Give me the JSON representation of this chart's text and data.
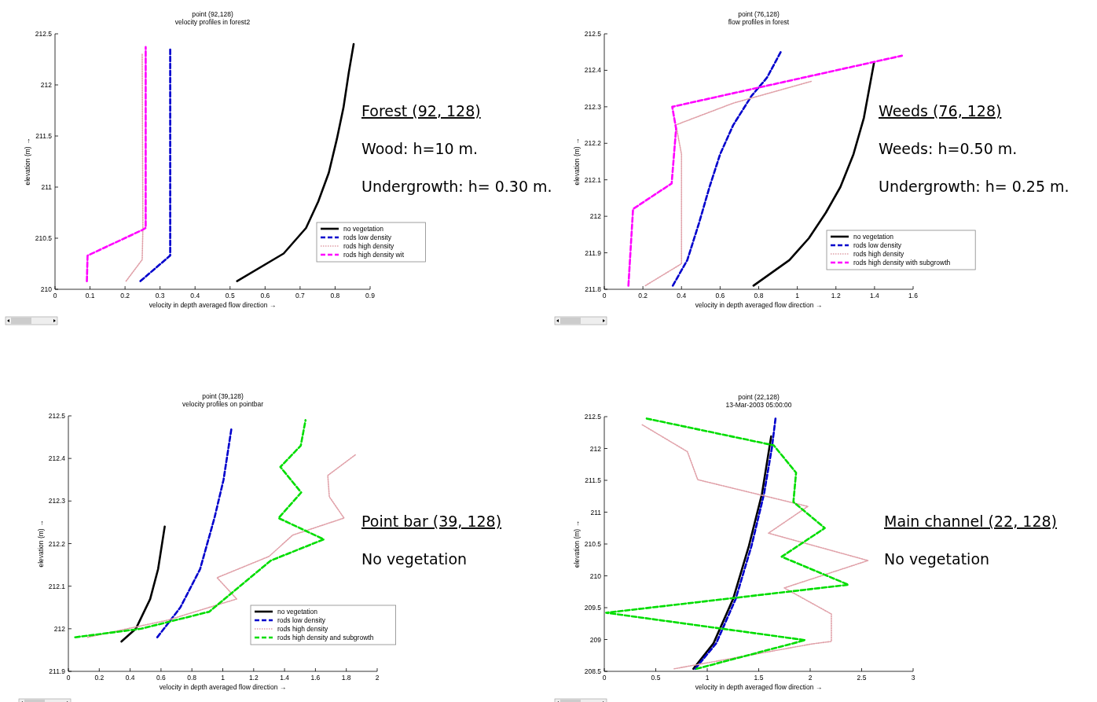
{
  "chart_data": [
    {
      "type": "line",
      "title": "point (92,128)",
      "subtitle": "velocity profiles in forest2",
      "xlabel": "velocity in depth averaged flow direction →",
      "ylabel": "elevation (m) →",
      "xlim": [
        0,
        0.9
      ],
      "ylim": [
        210,
        212.5
      ],
      "xticks": [
        0,
        0.1,
        0.2,
        0.3,
        0.4,
        0.5,
        0.6,
        0.7,
        0.8,
        0.9
      ],
      "yticks": [
        210,
        210.5,
        211,
        211.5,
        212,
        212.5
      ],
      "legend": "bottom right",
      "annotations": [
        "Forest (92, 128)",
        "Wood: h=10 m.",
        "Undergrowth: h= 0.30 m."
      ],
      "series": [
        {
          "name": "no vegetation",
          "color": "#000000",
          "line_style": "solid",
          "x": [
            0.52,
            0.653,
            0.717,
            0.752,
            0.782,
            0.805,
            0.824,
            0.839,
            0.853
          ],
          "values": [
            210.08,
            210.35,
            210.6,
            210.86,
            211.14,
            211.47,
            211.78,
            212.12,
            212.4
          ]
        },
        {
          "name": "rods low density",
          "color": "#0000cc",
          "line_style": "dashed",
          "x": [
            0.244,
            0.329,
            0.329
          ],
          "values": [
            210.08,
            210.33,
            212.35
          ]
        },
        {
          "name": "rods high density",
          "color": "#e0a0a8",
          "line_style": "dotted",
          "x": [
            0.203,
            0.249,
            0.251,
            0.249
          ],
          "values": [
            210.08,
            210.29,
            210.6,
            212.3
          ]
        },
        {
          "name": "rods high density wit",
          "color": "#ff00ff",
          "line_style": "dashed",
          "x": [
            0.091,
            0.093,
            0.249,
            0.259,
            0.259
          ],
          "values": [
            210.08,
            210.33,
            210.58,
            210.6,
            212.37
          ]
        }
      ]
    },
    {
      "type": "line",
      "title": "point (76,128)",
      "subtitle": "flow profiles in forest",
      "xlabel": "velocity in depth averaged flow direction →",
      "ylabel": "elevation (m) →",
      "xlim": [
        0,
        1.6
      ],
      "ylim": [
        211.8,
        212.5
      ],
      "xticks": [
        0,
        0.2,
        0.4,
        0.6,
        0.8,
        1,
        1.2,
        1.4,
        1.6
      ],
      "yticks": [
        211.8,
        211.9,
        212,
        212.1,
        212.2,
        212.3,
        212.4,
        212.5
      ],
      "legend": "bottom right",
      "annotations": [
        "Weeds (76, 128)",
        "Weeds: h=0.50 m.",
        "Undergrowth: h= 0.25 m."
      ],
      "series": [
        {
          "name": "no vegetation",
          "color": "#000000",
          "line_style": "solid",
          "x": [
            0.773,
            0.959,
            1.06,
            1.148,
            1.223,
            1.291,
            1.345,
            1.397
          ],
          "values": [
            211.81,
            211.88,
            211.94,
            212.01,
            212.08,
            212.17,
            212.27,
            212.42
          ]
        },
        {
          "name": "rods low density",
          "color": "#0000cc",
          "line_style": "dashed",
          "x": [
            0.355,
            0.43,
            0.49,
            0.545,
            0.6,
            0.668,
            0.763,
            0.843,
            0.914
          ],
          "values": [
            211.81,
            211.88,
            211.98,
            212.08,
            212.17,
            212.25,
            212.33,
            212.38,
            212.45
          ]
        },
        {
          "name": "rods high density",
          "color": "#e0a0a8",
          "line_style": "dotted",
          "x": [
            0.213,
            0.4,
            0.4,
            0.375,
            0.369,
            0.668,
            1.074
          ],
          "values": [
            211.81,
            211.87,
            212.17,
            212.24,
            212.25,
            212.31,
            212.37
          ]
        },
        {
          "name": "rods high density with subgrowth",
          "color": "#ff00ff",
          "line_style": "dashed",
          "x": [
            0.125,
            0.149,
            0.349,
            0.372,
            0.352,
            1.542
          ],
          "values": [
            211.81,
            212.02,
            212.09,
            212.24,
            212.3,
            212.44
          ]
        }
      ]
    },
    {
      "type": "line",
      "title": "point (39,128)",
      "subtitle": "velocity profiles on pointbar",
      "xlabel": "velocity in depth averaged flow direction →",
      "ylabel": "elevation (m) →",
      "xlim": [
        0,
        2
      ],
      "ylim": [
        211.9,
        212.5
      ],
      "xticks": [
        0,
        0.2,
        0.4,
        0.6,
        0.8,
        1,
        1.2,
        1.4,
        1.6,
        1.8,
        2
      ],
      "yticks": [
        211.9,
        212,
        212.1,
        212.2,
        212.3,
        212.4,
        212.5
      ],
      "legend": "bottom right",
      "annotations": [
        "Point bar (39, 128)",
        "No vegetation"
      ],
      "series": [
        {
          "name": "no vegetation",
          "color": "#000000",
          "line_style": "solid",
          "x": [
            0.344,
            0.437,
            0.53,
            0.581,
            0.624
          ],
          "values": [
            211.97,
            212,
            212.07,
            212.14,
            212.24
          ]
        },
        {
          "name": "rods low density",
          "color": "#0000cc",
          "line_style": "dashed",
          "x": [
            0.576,
            0.725,
            0.853,
            0.946,
            1.005,
            1.056
          ],
          "values": [
            211.98,
            212.05,
            212.14,
            212.26,
            212.35,
            212.47
          ]
        },
        {
          "name": "rods high density",
          "color": "#e0a0a8",
          "line_style": "dotted",
          "x": [
            0.124,
            0.641,
            1.09,
            0.963,
            1.3,
            1.453,
            1.785,
            1.69,
            1.68,
            1.864
          ],
          "values": [
            211.98,
            212.02,
            212.07,
            212.12,
            212.17,
            212.22,
            212.26,
            212.31,
            212.36,
            212.41
          ]
        },
        {
          "name": "rods high density and subgrowth",
          "color": "#00dd00",
          "line_style": "dashed",
          "x": [
            0.044,
            0.471,
            0.912,
            1.31,
            1.654,
            1.361,
            1.508,
            1.373,
            1.505,
            1.536
          ],
          "values": [
            211.98,
            212,
            212.04,
            212.16,
            212.21,
            212.26,
            212.32,
            212.38,
            212.43,
            212.49
          ]
        }
      ]
    },
    {
      "type": "line",
      "title": "point (22,128)",
      "subtitle": "13-Mar-2003 05:00:00",
      "xlabel": "velocity in depth averaged flow direction →",
      "ylabel": "elevation (m) →",
      "xlim": [
        0,
        3
      ],
      "ylim": [
        208.5,
        212.5
      ],
      "xticks": [
        0,
        0.5,
        1,
        1.5,
        2,
        2.5,
        3
      ],
      "yticks": [
        208.5,
        209,
        209.5,
        210,
        210.5,
        211,
        211.5,
        212,
        212.5
      ],
      "annotations": [
        "Main channel (22, 128)",
        "No vegetation"
      ],
      "series": [
        {
          "color": "#000000",
          "line_style": "solid",
          "x": [
            0.865,
            1.061,
            1.252,
            1.405,
            1.532,
            1.621
          ],
          "values": [
            208.54,
            208.94,
            209.64,
            210.47,
            211.29,
            212.19
          ]
        },
        {
          "color": "#0000cc",
          "line_style": "dashed",
          "x": [
            0.883,
            1.087,
            1.277,
            1.43,
            1.552,
            1.628,
            1.664
          ],
          "values": [
            208.54,
            208.94,
            209.64,
            210.47,
            211.29,
            212.01,
            212.48
          ]
        },
        {
          "color": "#e0a0a8",
          "line_style": "dotted",
          "x": [
            0.679,
            2.015,
            2.206,
            2.206,
            1.748,
            2.562,
            1.595,
            1.977,
            0.908,
            0.807,
            0.361
          ],
          "values": [
            208.54,
            208.93,
            208.97,
            209.4,
            209.81,
            210.24,
            210.67,
            211.09,
            211.51,
            211.95,
            212.38
          ]
        },
        {
          "color": "#00dd00",
          "line_style": "dashed",
          "x": [
            0.896,
            1.952,
            0.018,
            2.372,
            1.723,
            2.142,
            1.837,
            1.863,
            1.646,
            0.412
          ],
          "values": [
            208.54,
            208.99,
            209.42,
            209.86,
            210.3,
            210.75,
            211.16,
            211.62,
            212.05,
            212.47
          ]
        }
      ]
    }
  ]
}
